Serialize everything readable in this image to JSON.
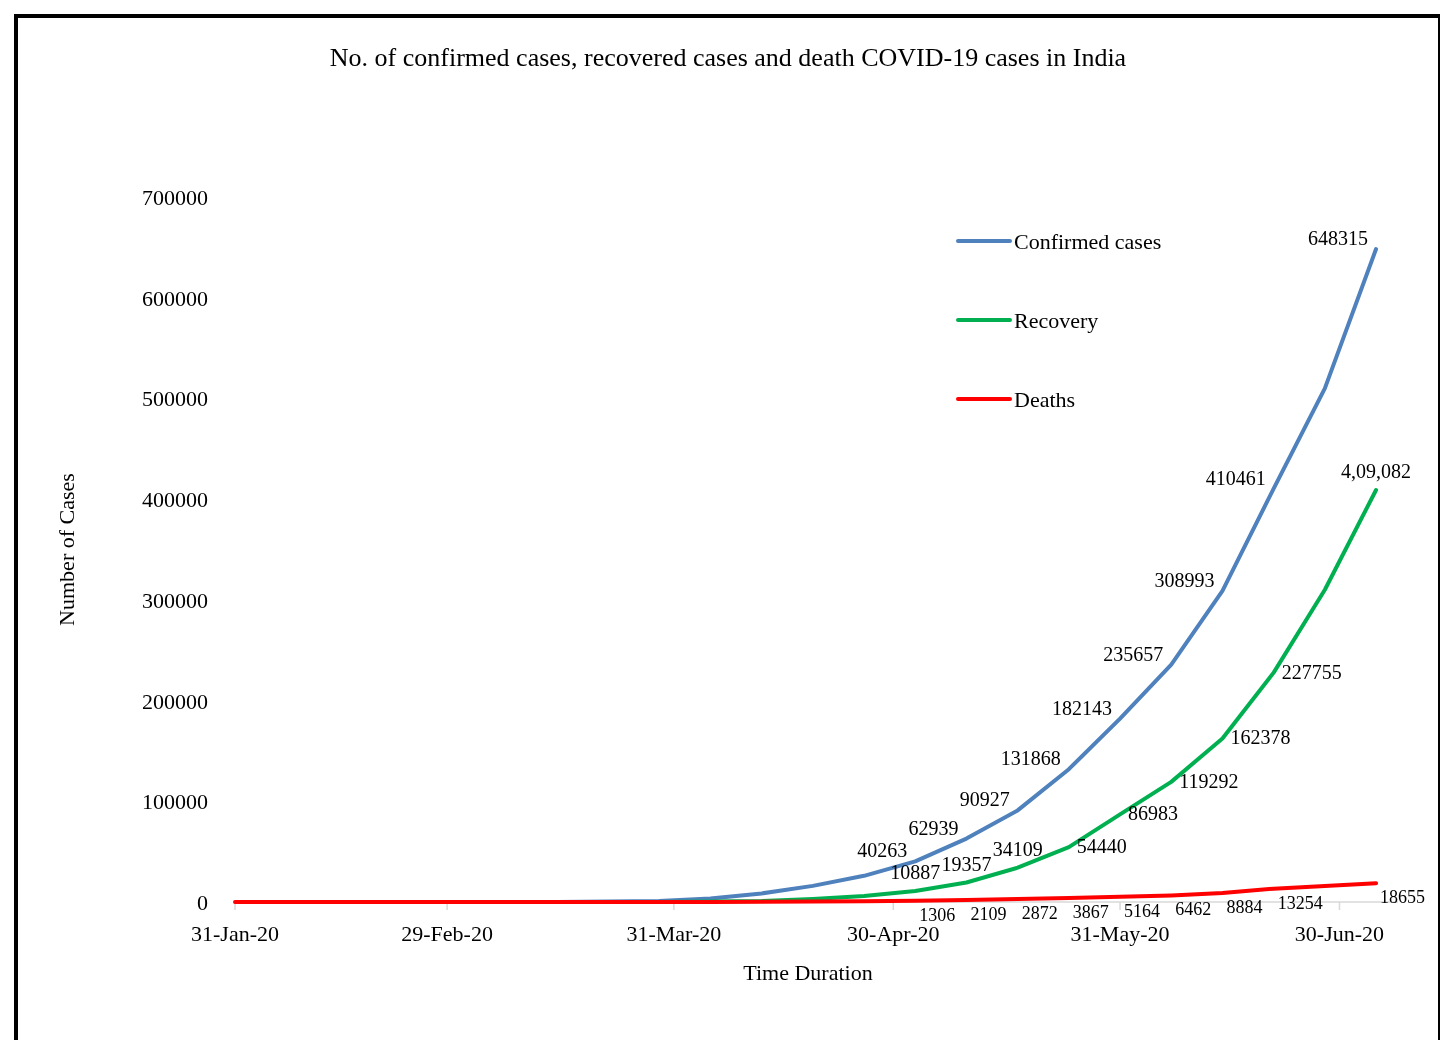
{
  "chart_data": {
    "type": "line",
    "title": "No. of confirmed cases, recovered cases and death COVID-19 cases in India",
    "xlabel": "Time Duration",
    "ylabel": "Number of Cases",
    "x": [
      "2020-01-31",
      "2020-02-02",
      "2020-02-09",
      "2020-02-16",
      "2020-02-23",
      "2020-03-01",
      "2020-03-08",
      "2020-03-15",
      "2020-03-22",
      "2020-03-29",
      "2020-04-05",
      "2020-04-12",
      "2020-04-19",
      "2020-04-26",
      "2020-05-03",
      "2020-05-10",
      "2020-05-17",
      "2020-05-24",
      "2020-05-31",
      "2020-06-07",
      "2020-06-14",
      "2020-06-21",
      "2020-06-28",
      "2020-07-05"
    ],
    "series": [
      {
        "name": "Confirmed cases",
        "color": "#4f81bd",
        "values": [
          null,
          null,
          null,
          null,
          null,
          null,
          null,
          0,
          500,
          1000,
          3500,
          8500,
          16000,
          26000,
          40263,
          62939,
          90927,
          131868,
          182143,
          235657,
          308993,
          410461,
          510000,
          648315
        ],
        "value_labels": [
          null,
          null,
          null,
          null,
          null,
          null,
          null,
          null,
          null,
          null,
          null,
          null,
          null,
          null,
          "40263",
          "62939",
          "90927",
          "131868",
          "182143",
          "235657",
          "308993",
          "410461",
          null,
          "648315"
        ]
      },
      {
        "name": "Recovery",
        "color": "#00b050",
        "values": [
          null,
          null,
          null,
          null,
          null,
          null,
          null,
          null,
          null,
          0,
          500,
          1000,
          3000,
          6000,
          10887,
          19357,
          34109,
          54440,
          86983,
          119292,
          162378,
          227755,
          310000,
          409082
        ],
        "value_labels": [
          null,
          null,
          null,
          null,
          null,
          null,
          null,
          null,
          null,
          null,
          null,
          null,
          null,
          null,
          "10887",
          "19357",
          "34109",
          "54440",
          "86983",
          "119292",
          "162378",
          "227755",
          null,
          "4,09,082"
        ]
      },
      {
        "name": "Deaths",
        "color": "#ff0000",
        "values": [
          0,
          0,
          0,
          0,
          0,
          0,
          0,
          0,
          0,
          0,
          100,
          300,
          500,
          800,
          1306,
          2109,
          2872,
          3867,
          5164,
          6462,
          8884,
          13254,
          16000,
          18655
        ],
        "value_labels": [
          null,
          null,
          null,
          null,
          null,
          null,
          null,
          null,
          null,
          null,
          null,
          null,
          null,
          null,
          "1306",
          "2109",
          "2872",
          "3867",
          "5164",
          "6462",
          "8884",
          "13254",
          null,
          "18655"
        ]
      }
    ],
    "xlim": [
      "2020-01-31",
      "2020-07-08"
    ],
    "xticks": [
      {
        "value": "2020-01-31",
        "label": "31-Jan-20"
      },
      {
        "value": "2020-02-29",
        "label": "29-Feb-20"
      },
      {
        "value": "2020-03-31",
        "label": "31-Mar-20"
      },
      {
        "value": "2020-04-30",
        "label": "30-Apr-20"
      },
      {
        "value": "2020-05-31",
        "label": "31-May-20"
      },
      {
        "value": "2020-06-30",
        "label": "30-Jun-20"
      }
    ],
    "ylim": [
      0,
      700000
    ],
    "yticks": [
      0,
      100000,
      200000,
      300000,
      400000,
      500000,
      600000,
      700000
    ],
    "grid": false,
    "legend": "top right",
    "marker": "none",
    "line_style": "solid"
  }
}
